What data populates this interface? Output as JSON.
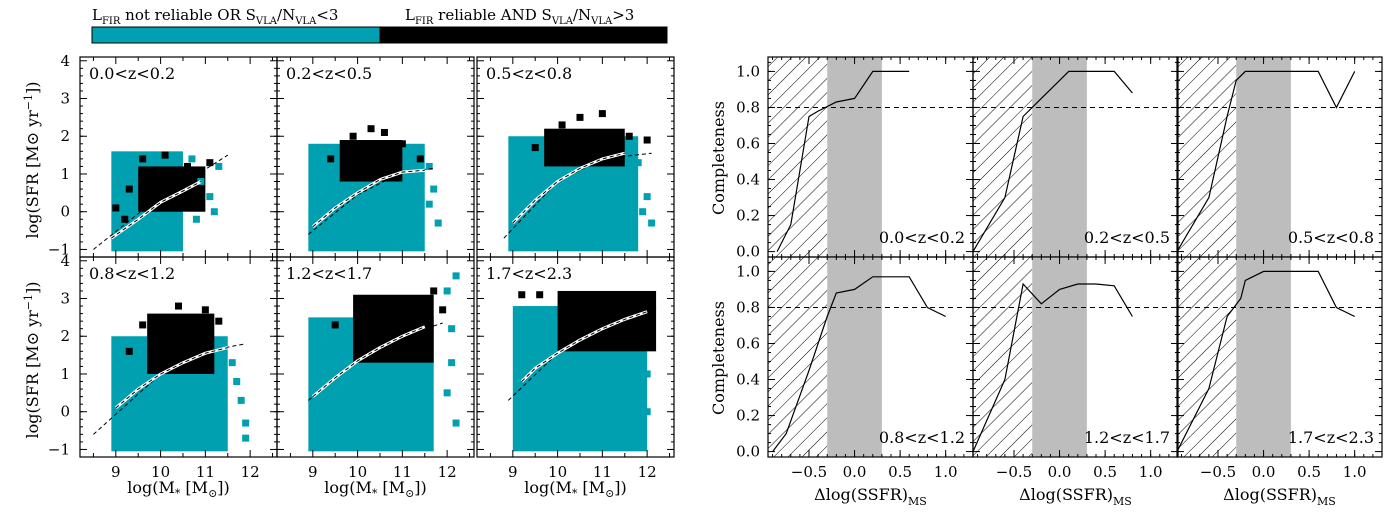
{
  "legend": {
    "left": {
      "main": "L",
      "sub": "FIR",
      "text": " not reliable OR S",
      "sub2": "VLA",
      "text2": "/N",
      "sub3": "VLA",
      "text3": "<3",
      "color": "#00a0b0"
    },
    "right": {
      "main": "L",
      "sub": "FIR",
      "text": " reliable AND S",
      "sub2": "VLA",
      "text2": "/N",
      "sub3": "VLA",
      "text3": ">3",
      "color": "#000000"
    },
    "bar_split_fraction": 0.5
  },
  "left_panels": {
    "ylabel": {
      "main": "log(SFR [M",
      "sun": "⊙",
      "end": " yr",
      "sup": "−1",
      "close": "])"
    },
    "xlabel": {
      "main": "log(M",
      "sub": "*",
      "mid": " [M",
      "sun": "⊙",
      "close": "])"
    },
    "x_ticks": [
      "9",
      "10",
      "11",
      "12"
    ],
    "y_ticks": [
      "−1",
      "0",
      "1",
      "2",
      "3",
      "4"
    ],
    "xlim": [
      8.2,
      12.6
    ],
    "ylim": [
      -1.2,
      4.1
    ],
    "labels": [
      "0.0<z<0.2",
      "0.2<z<0.5",
      "0.5<z<0.8",
      "0.8<z<1.2",
      "1.2<z<1.7",
      "1.7<z<2.3"
    ]
  },
  "right_panels": {
    "ylabel": "Completeness",
    "xlabel": {
      "main": "Δlog(SSFR)",
      "sub": "MS"
    },
    "x_ticks": [
      "−0.5",
      "0.0",
      "0.5",
      "1.0"
    ],
    "y_ticks": [
      "0.0",
      "0.2",
      "0.4",
      "0.6",
      "0.8",
      "1.0"
    ],
    "xlim": [
      -0.95,
      1.3
    ],
    "ylim": [
      -0.03,
      1.08
    ],
    "labels": [
      "0.0<z<0.2",
      "0.2<z<0.5",
      "0.5<z<0.8",
      "0.8<z<1.2",
      "1.2<z<1.7",
      "1.7<z<2.3"
    ],
    "hatch_range": [
      -0.95,
      -0.3
    ],
    "shade_range": [
      -0.3,
      0.3
    ],
    "threshold": 0.8
  },
  "chart_data": [
    {
      "type": "heatmap",
      "title": "",
      "xlabel": "log(M* [M⊙])",
      "ylabel": "log(SFR [M⊙ yr−1])",
      "panels": [
        {
          "label": "0.0<z<0.2",
          "cyan": [
            [
              8.9,
              10.5,
              -1.05,
              1.6
            ]
          ],
          "black": [
            [
              9.5,
              11.0,
              0.0,
              1.2
            ]
          ],
          "black_points": [
            [
              9.0,
              0.1
            ],
            [
              9.3,
              0.6
            ],
            [
              9.6,
              1.4
            ],
            [
              10.1,
              1.5
            ],
            [
              10.6,
              1.2
            ],
            [
              11.1,
              1.3
            ],
            [
              9.2,
              -0.2
            ],
            [
              10.0,
              0.9
            ]
          ],
          "cyan_points": [
            [
              10.9,
              0.8
            ],
            [
              11.1,
              0.4
            ],
            [
              11.2,
              0.0
            ],
            [
              10.8,
              -0.2
            ],
            [
              11.3,
              1.2
            ],
            [
              10.7,
              1.4
            ]
          ],
          "ms_curve": [
            [
              8.9,
              -0.7
            ],
            [
              9.5,
              -0.2
            ],
            [
              10.0,
              0.25
            ],
            [
              10.5,
              0.55
            ],
            [
              10.9,
              0.8
            ]
          ],
          "ms_dash": [
            [
              8.5,
              -1.0
            ],
            [
              9.5,
              -0.05
            ],
            [
              10.5,
              0.75
            ],
            [
              11.5,
              1.5
            ]
          ]
        },
        {
          "label": "0.2<z<0.5",
          "cyan": [
            [
              8.9,
              11.5,
              -1.05,
              1.8
            ]
          ],
          "black": [
            [
              9.6,
              11.0,
              0.8,
              1.9
            ]
          ],
          "black_points": [
            [
              9.4,
              1.4
            ],
            [
              10.3,
              2.2
            ],
            [
              10.6,
              2.1
            ],
            [
              11.0,
              1.8
            ],
            [
              11.4,
              1.4
            ],
            [
              9.9,
              2.0
            ]
          ],
          "cyan_points": [
            [
              11.6,
              1.2
            ],
            [
              11.7,
              0.6
            ],
            [
              11.6,
              0.2
            ],
            [
              11.8,
              -0.3
            ]
          ],
          "ms_curve": [
            [
              9.0,
              -0.4
            ],
            [
              9.5,
              0.1
            ],
            [
              10.0,
              0.5
            ],
            [
              10.5,
              0.85
            ],
            [
              11.0,
              1.05
            ],
            [
              11.5,
              1.1
            ]
          ],
          "ms_dash": [
            [
              8.9,
              -0.6
            ],
            [
              10.0,
              0.45
            ],
            [
              11.0,
              1.05
            ],
            [
              11.7,
              1.15
            ]
          ]
        },
        {
          "label": "0.5<z<0.8",
          "cyan": [
            [
              8.9,
              11.8,
              -1.05,
              2.0
            ]
          ],
          "black": [
            [
              9.7,
              11.5,
              1.2,
              2.2
            ]
          ],
          "black_points": [
            [
              9.5,
              1.7
            ],
            [
              10.1,
              2.3
            ],
            [
              10.5,
              2.5
            ],
            [
              11.0,
              2.6
            ],
            [
              11.6,
              2.0
            ],
            [
              12.0,
              1.9
            ]
          ],
          "cyan_points": [
            [
              11.8,
              1.3
            ],
            [
              12.0,
              0.4
            ],
            [
              11.9,
              0.0
            ],
            [
              12.1,
              -0.3
            ]
          ],
          "ms_curve": [
            [
              9.0,
              -0.3
            ],
            [
              9.5,
              0.3
            ],
            [
              10.0,
              0.8
            ],
            [
              10.5,
              1.15
            ],
            [
              11.0,
              1.4
            ],
            [
              11.5,
              1.55
            ]
          ],
          "ms_dash": [
            [
              8.8,
              -0.7
            ],
            [
              10.0,
              0.8
            ],
            [
              11.0,
              1.4
            ],
            [
              12.1,
              1.55
            ]
          ]
        },
        {
          "label": "0.8<z<1.2",
          "cyan": [
            [
              8.9,
              11.5,
              -1.05,
              2.0
            ]
          ],
          "black": [
            [
              9.7,
              11.2,
              1.0,
              2.6
            ]
          ],
          "black_points": [
            [
              9.3,
              1.6
            ],
            [
              9.6,
              2.3
            ],
            [
              10.4,
              2.8
            ],
            [
              11.0,
              2.7
            ],
            [
              11.3,
              2.4
            ]
          ],
          "cyan_points": [
            [
              11.6,
              1.3
            ],
            [
              11.7,
              0.8
            ],
            [
              11.8,
              0.3
            ],
            [
              11.9,
              -0.3
            ],
            [
              11.9,
              -0.7
            ]
          ],
          "ms_curve": [
            [
              9.0,
              0.1
            ],
            [
              9.5,
              0.6
            ],
            [
              10.0,
              1.0
            ],
            [
              10.5,
              1.3
            ],
            [
              11.0,
              1.55
            ],
            [
              11.5,
              1.7
            ]
          ],
          "ms_dash": [
            [
              8.5,
              -0.6
            ],
            [
              10.0,
              1.0
            ],
            [
              11.0,
              1.6
            ],
            [
              11.9,
              1.8
            ]
          ]
        },
        {
          "label": "1.2<z<1.7",
          "cyan": [
            [
              8.9,
              11.7,
              -1.05,
              2.5
            ]
          ],
          "black": [
            [
              9.9,
              11.7,
              1.3,
              3.1
            ]
          ],
          "black_points": [
            [
              9.5,
              2.3
            ],
            [
              10.0,
              2.8
            ],
            [
              11.7,
              3.2
            ],
            [
              11.9,
              2.7
            ]
          ],
          "cyan_points": [
            [
              12.0,
              3.2
            ],
            [
              12.2,
              3.6
            ],
            [
              12.1,
              2.2
            ],
            [
              12.1,
              1.3
            ],
            [
              12.0,
              0.5
            ],
            [
              12.2,
              -0.3
            ]
          ],
          "ms_curve": [
            [
              9.0,
              0.4
            ],
            [
              9.5,
              0.9
            ],
            [
              10.0,
              1.35
            ],
            [
              10.5,
              1.7
            ],
            [
              11.0,
              2.0
            ],
            [
              11.5,
              2.25
            ]
          ],
          "ms_dash": [
            [
              8.9,
              0.3
            ],
            [
              10.0,
              1.35
            ],
            [
              11.0,
              2.0
            ],
            [
              11.9,
              2.35
            ]
          ]
        },
        {
          "label": "1.7<z<2.3",
          "cyan": [
            [
              9.0,
              12.0,
              -1.05,
              2.8
            ]
          ],
          "black": [
            [
              10.0,
              12.2,
              1.6,
              3.2
            ]
          ],
          "black_points": [
            [
              9.2,
              3.1
            ],
            [
              9.6,
              3.1
            ]
          ],
          "cyan_points": [
            [
              12.0,
              1.0
            ],
            [
              12.0,
              0.0
            ],
            [
              11.8,
              -0.5
            ]
          ],
          "ms_curve": [
            [
              9.2,
              0.8
            ],
            [
              9.5,
              1.15
            ],
            [
              10.0,
              1.55
            ],
            [
              10.5,
              1.9
            ],
            [
              11.0,
              2.2
            ],
            [
              11.5,
              2.45
            ],
            [
              12.0,
              2.65
            ]
          ],
          "ms_dash": [
            [
              8.9,
              0.3
            ],
            [
              10.0,
              1.55
            ],
            [
              11.0,
              2.2
            ],
            [
              12.2,
              2.75
            ]
          ]
        }
      ]
    },
    {
      "type": "line",
      "title": "",
      "xlabel": "Δlog(SSFR)MS",
      "ylabel": "Completeness",
      "series": [
        {
          "label": "0.0<z<0.2",
          "x": [
            -0.85,
            -0.7,
            -0.5,
            -0.4,
            -0.2,
            0.0,
            0.2,
            0.3,
            0.4,
            0.5,
            0.6
          ],
          "y": [
            0.0,
            0.15,
            0.75,
            0.78,
            0.83,
            0.85,
            1.0,
            1.0,
            1.0,
            1.0,
            1.0
          ]
        },
        {
          "label": "0.2<z<0.5",
          "x": [
            -0.95,
            -0.6,
            -0.4,
            -0.2,
            0.0,
            0.1,
            0.2,
            0.3,
            0.4,
            0.5,
            0.6,
            0.8
          ],
          "y": [
            0.0,
            0.3,
            0.75,
            0.85,
            0.95,
            1.0,
            1.0,
            1.0,
            1.0,
            1.0,
            1.0,
            0.88
          ]
        },
        {
          "label": "0.5<z<0.8",
          "x": [
            -0.95,
            -0.6,
            -0.4,
            -0.3,
            -0.2,
            0.0,
            0.2,
            0.4,
            0.6,
            0.8,
            1.0
          ],
          "y": [
            0.0,
            0.3,
            0.75,
            0.95,
            1.0,
            1.0,
            1.0,
            1.0,
            1.0,
            0.8,
            1.0
          ]
        },
        {
          "label": "0.8<z<1.2",
          "x": [
            -0.9,
            -0.75,
            -0.5,
            -0.3,
            -0.2,
            0.0,
            0.2,
            0.4,
            0.6,
            0.8,
            1.0
          ],
          "y": [
            0.0,
            0.1,
            0.45,
            0.75,
            0.88,
            0.9,
            0.97,
            0.97,
            0.97,
            0.8,
            0.75
          ]
        },
        {
          "label": "1.2<z<1.7",
          "x": [
            -0.95,
            -0.6,
            -0.4,
            -0.2,
            0.0,
            0.2,
            0.4,
            0.6,
            0.8
          ],
          "y": [
            0.0,
            0.4,
            0.93,
            0.82,
            0.9,
            0.93,
            0.93,
            0.92,
            0.75
          ]
        },
        {
          "label": "1.7<z<2.3",
          "x": [
            -0.95,
            -0.6,
            -0.4,
            -0.25,
            -0.2,
            0.0,
            0.2,
            0.4,
            0.6,
            0.8,
            1.0
          ],
          "y": [
            0.0,
            0.35,
            0.75,
            0.85,
            0.95,
            1.0,
            1.0,
            1.0,
            1.0,
            0.8,
            0.75
          ]
        }
      ]
    }
  ]
}
